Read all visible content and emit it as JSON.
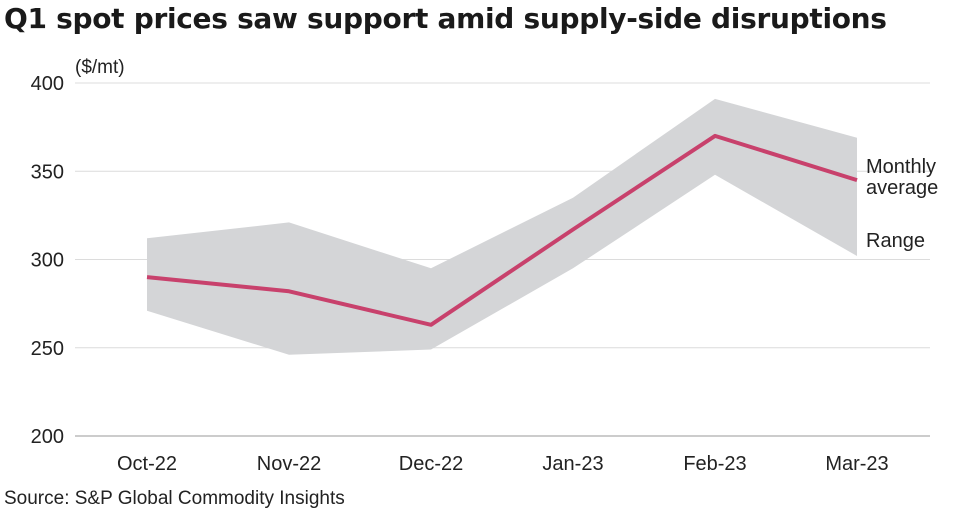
{
  "title": "Q1 spot prices saw support amid supply-side disruptions",
  "source": "Source: S&P Global Commodity Insights",
  "chart_data": {
    "type": "area",
    "title": "Q1 spot prices saw support amid supply-side disruptions",
    "unit_label": "($/mt)",
    "categories": [
      "Oct-22",
      "Nov-22",
      "Dec-22",
      "Jan-23",
      "Feb-23",
      "Mar-23"
    ],
    "y_ticks": [
      200,
      250,
      300,
      350,
      400
    ],
    "ylim": [
      200,
      400
    ],
    "grid": true,
    "series": [
      {
        "name": "Monthly average",
        "type": "line",
        "values": [
          290,
          282,
          263,
          317,
          370,
          345
        ]
      },
      {
        "name": "Range",
        "type": "range",
        "low": [
          271,
          246,
          249,
          295,
          348,
          302
        ],
        "high": [
          312,
          321,
          295,
          335,
          391,
          369
        ]
      }
    ],
    "labels": {
      "average_line1": "Monthly",
      "average_line2": "average",
      "range": "Range"
    },
    "colors": {
      "line": "#c8416c",
      "range": "#d4d5d7",
      "grid": "#dcdcdc",
      "axis": "#9a9a9a"
    }
  }
}
